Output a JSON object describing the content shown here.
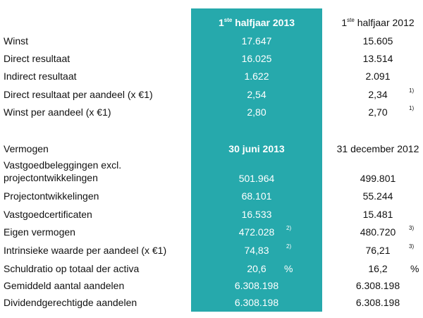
{
  "header": {
    "col1": {
      "sup": "ste",
      "pre": "1",
      "text": " halfjaar 2013"
    },
    "col2": {
      "sup": "ste",
      "pre": "1",
      "text": " halfjaar 2012"
    }
  },
  "results": [
    {
      "label": "Winst",
      "v1": "17.647",
      "v2": "15.605"
    },
    {
      "label": "Direct resultaat",
      "v1": "16.025",
      "v2": "13.514"
    },
    {
      "label": "Indirect resultaat",
      "v1": "1.622",
      "v2": "2.091"
    },
    {
      "label": "Direct resultaat per aandeel (x €1)",
      "v1": "2,54",
      "v2": "2,34",
      "n2": "1)"
    },
    {
      "label": "Winst per aandeel (x €1)",
      "v1": "2,80",
      "v2": "2,70",
      "n2": "1)"
    }
  ],
  "vermogen": {
    "label": "Vermogen",
    "col1": "30 juni 2013",
    "col2": "31 december 2012",
    "rows": [
      {
        "label": "Vastgoedbeleggingen excl.",
        "label2": "projectontwikkelingen",
        "v1": "501.964",
        "v2": "499.801"
      },
      {
        "label": "Projectontwikkelingen",
        "v1": "68.101",
        "v2": "55.244"
      },
      {
        "label": "Vastgoedcertificaten",
        "v1": "16.533",
        "v2": "15.481"
      },
      {
        "label": "Eigen vermogen",
        "v1": "472.028",
        "n1": "2)",
        "v2": "480.720",
        "n2": "3)"
      },
      {
        "label": "Intrinsieke waarde per aandeel (x €1)",
        "v1": "74,83",
        "n1": "2)",
        "v2": "76,21",
        "n2": "3)"
      },
      {
        "label": "Schuldratio op totaal der activa",
        "v1": "20,6",
        "u1": "%",
        "v2": "16,2",
        "u2": "%"
      },
      {
        "label": "Gemiddeld aantal aandelen",
        "v1": "6.308.198",
        "v2": "6.308.198"
      },
      {
        "label": "Dividendgerechtigde aandelen",
        "v1": "6.308.198",
        "v2": "6.308.198"
      }
    ]
  }
}
